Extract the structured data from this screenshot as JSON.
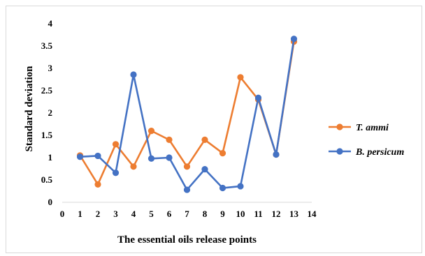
{
  "chart_data": {
    "type": "line",
    "title": "",
    "xlabel": "The essential oils release points",
    "ylabel": "Standard deviation",
    "xlim": [
      0,
      14
    ],
    "ylim": [
      0,
      4
    ],
    "xticks": [
      "0",
      "1",
      "2",
      "3",
      "4",
      "5",
      "6",
      "7",
      "8",
      "9",
      "10",
      "11",
      "12",
      "13",
      "14"
    ],
    "yticks": [
      "0",
      "0.5",
      "1",
      "1.5",
      "2",
      "2.5",
      "3",
      "3.5",
      "4"
    ],
    "grid": false,
    "legend_position": "right",
    "x": [
      1,
      2,
      3,
      4,
      5,
      6,
      7,
      8,
      9,
      10,
      11,
      12,
      13
    ],
    "series": [
      {
        "name": "T. ammi",
        "color": "#ED7D31",
        "values": [
          1.05,
          0.4,
          1.3,
          0.8,
          1.6,
          1.4,
          0.8,
          1.4,
          1.1,
          2.8,
          2.3,
          1.07,
          3.6
        ]
      },
      {
        "name": "B. persicum",
        "color": "#4472C4",
        "values": [
          1.02,
          1.04,
          0.66,
          2.86,
          0.98,
          1.0,
          0.28,
          0.74,
          0.32,
          0.36,
          2.34,
          1.07,
          3.66
        ]
      }
    ]
  }
}
